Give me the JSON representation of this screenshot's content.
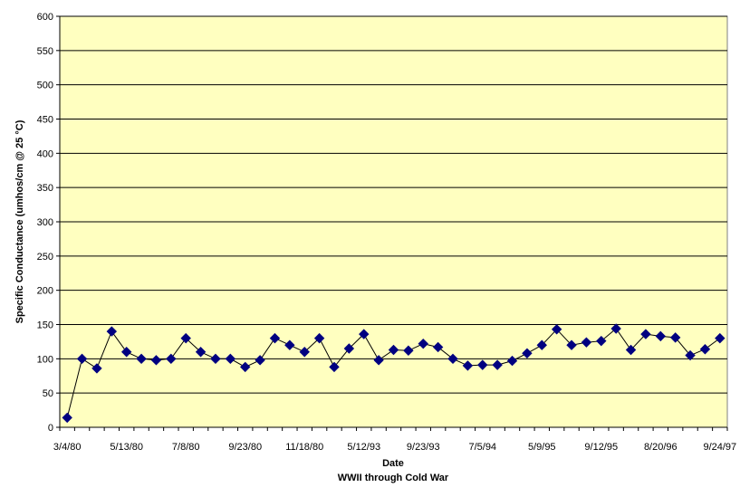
{
  "chart_data": {
    "type": "line",
    "title": "",
    "xlabel": "Date",
    "xlabel_sub": "WWII through Cold War",
    "ylabel": "Specific Conductance (umhos/cm @ 25 °C)",
    "ylim": [
      0,
      600
    ],
    "yticks": [
      0,
      50,
      100,
      150,
      200,
      250,
      300,
      350,
      400,
      450,
      500,
      550,
      600
    ],
    "grid": true,
    "legend": "none",
    "colors": {
      "plot_background": "#FFFFC0",
      "line": "#000000",
      "marker": "#000080",
      "grid": "#000000"
    },
    "x_tick_labels": [
      "3/4/80",
      "5/13/80",
      "7/8/80",
      "9/23/80",
      "11/18/80",
      "5/12/93",
      "9/23/93",
      "7/5/94",
      "5/9/95",
      "9/12/95",
      "8/20/96",
      "9/24/97"
    ],
    "series": [
      {
        "values": [
          14,
          100,
          86,
          140,
          110,
          100,
          98,
          100,
          130,
          110,
          100,
          100,
          88,
          98,
          130,
          120,
          110,
          130,
          88,
          115,
          136,
          98,
          113,
          112,
          122,
          117,
          100,
          90,
          91,
          91,
          97,
          108,
          120,
          143,
          120,
          124,
          126,
          144,
          113,
          136,
          133,
          131,
          105,
          114,
          130
        ]
      }
    ]
  }
}
